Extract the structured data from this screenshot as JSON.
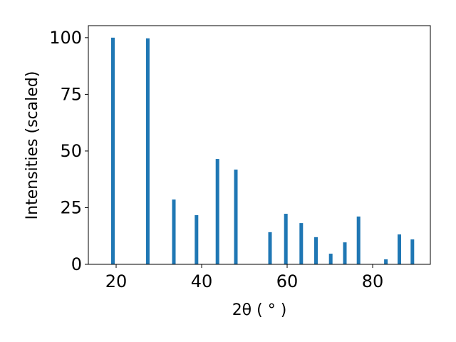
{
  "chart_data": {
    "type": "bar",
    "x_label": "2θ ( ° )",
    "y_label": "Intensities (scaled)",
    "x": [
      19.25,
      27.4,
      33.5,
      38.8,
      43.7,
      48.0,
      56.0,
      59.7,
      63.3,
      66.75,
      70.2,
      73.5,
      76.7,
      83.1,
      86.25,
      89.3
    ],
    "values": [
      100,
      99.7,
      28.6,
      21.7,
      46.5,
      41.8,
      14.2,
      22.3,
      18.2,
      12,
      4.7,
      9.7,
      21.1,
      2.2,
      13.2,
      11
    ],
    "color": "#1f77b4",
    "xlim": [
      13.5,
      93.5
    ],
    "xticks": [
      20,
      40,
      60,
      80
    ],
    "ylim": [
      0,
      105.3
    ],
    "yticks": [
      0,
      25,
      50,
      75,
      100
    ]
  }
}
